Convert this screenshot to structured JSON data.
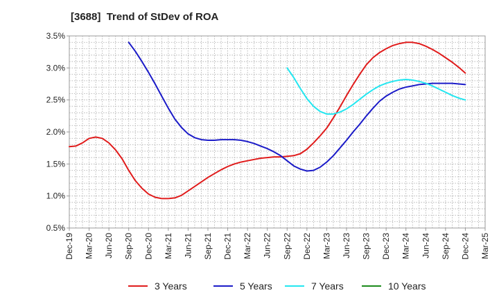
{
  "chart_data": {
    "type": "line",
    "title": "[3688]  Trend of StDev of ROA",
    "xlabel": "",
    "ylabel": "",
    "x_tick_labels": [
      "Dec-19",
      "Mar-20",
      "Jun-20",
      "Sep-20",
      "Dec-20",
      "Mar-21",
      "Jun-21",
      "Sep-21",
      "Dec-21",
      "Mar-22",
      "Jun-22",
      "Sep-22",
      "Dec-22",
      "Mar-23",
      "Jun-23",
      "Sep-23",
      "Dec-23",
      "Mar-24",
      "Jun-24",
      "Sep-24",
      "Dec-24",
      "Mar-25"
    ],
    "y_tick_labels": [
      "3.5%",
      "3.0%",
      "2.5%",
      "2.0%",
      "1.5%",
      "1.0%",
      "0.5%"
    ],
    "ylim": [
      0.5,
      3.5
    ],
    "y_unit": "%",
    "grid": true,
    "legend_position": "bottom",
    "series": [
      {
        "name": "3 Years",
        "color": "#e01b1b",
        "points": [
          [
            "Dec-19",
            1.77
          ],
          [
            "Jan-20",
            1.78
          ],
          [
            "Feb-20",
            1.83
          ],
          [
            "Mar-20",
            1.9
          ],
          [
            "Apr-20",
            1.92
          ],
          [
            "May-20",
            1.9
          ],
          [
            "Jun-20",
            1.83
          ],
          [
            "Jul-20",
            1.72
          ],
          [
            "Aug-20",
            1.58
          ],
          [
            "Sep-20",
            1.4
          ],
          [
            "Oct-20",
            1.24
          ],
          [
            "Nov-20",
            1.12
          ],
          [
            "Dec-20",
            1.03
          ],
          [
            "Jan-21",
            0.98
          ],
          [
            "Feb-21",
            0.96
          ],
          [
            "Mar-21",
            0.96
          ],
          [
            "Apr-21",
            0.97
          ],
          [
            "May-21",
            1.01
          ],
          [
            "Jun-21",
            1.08
          ],
          [
            "Jul-21",
            1.15
          ],
          [
            "Aug-21",
            1.22
          ],
          [
            "Sep-21",
            1.29
          ],
          [
            "Oct-21",
            1.35
          ],
          [
            "Nov-21",
            1.41
          ],
          [
            "Dec-21",
            1.46
          ],
          [
            "Jan-22",
            1.5
          ],
          [
            "Feb-22",
            1.53
          ],
          [
            "Mar-22",
            1.55
          ],
          [
            "Apr-22",
            1.57
          ],
          [
            "May-22",
            1.59
          ],
          [
            "Jun-22",
            1.6
          ],
          [
            "Jul-22",
            1.61
          ],
          [
            "Aug-22",
            1.61
          ],
          [
            "Sep-22",
            1.62
          ],
          [
            "Oct-22",
            1.63
          ],
          [
            "Nov-22",
            1.66
          ],
          [
            "Dec-22",
            1.73
          ],
          [
            "Jan-23",
            1.83
          ],
          [
            "Feb-23",
            1.94
          ],
          [
            "Mar-23",
            2.06
          ],
          [
            "Apr-23",
            2.22
          ],
          [
            "May-23",
            2.39
          ],
          [
            "Jun-23",
            2.57
          ],
          [
            "Jul-23",
            2.74
          ],
          [
            "Aug-23",
            2.9
          ],
          [
            "Sep-23",
            3.05
          ],
          [
            "Oct-23",
            3.16
          ],
          [
            "Nov-23",
            3.24
          ],
          [
            "Dec-23",
            3.3
          ],
          [
            "Jan-24",
            3.35
          ],
          [
            "Feb-24",
            3.38
          ],
          [
            "Mar-24",
            3.4
          ],
          [
            "Apr-24",
            3.4
          ],
          [
            "May-24",
            3.38
          ],
          [
            "Jun-24",
            3.34
          ],
          [
            "Jul-24",
            3.29
          ],
          [
            "Aug-24",
            3.23
          ],
          [
            "Sep-24",
            3.16
          ],
          [
            "Oct-24",
            3.09
          ],
          [
            "Nov-24",
            3.01
          ],
          [
            "Dec-24",
            2.92
          ]
        ]
      },
      {
        "name": "5 Years",
        "color": "#1a1ac8",
        "points": [
          [
            "Sep-20",
            3.4
          ],
          [
            "Oct-20",
            3.26
          ],
          [
            "Nov-20",
            3.1
          ],
          [
            "Dec-20",
            2.93
          ],
          [
            "Jan-21",
            2.75
          ],
          [
            "Feb-21",
            2.56
          ],
          [
            "Mar-21",
            2.37
          ],
          [
            "Apr-21",
            2.2
          ],
          [
            "May-21",
            2.07
          ],
          [
            "Jun-21",
            1.97
          ],
          [
            "Jul-21",
            1.91
          ],
          [
            "Aug-21",
            1.88
          ],
          [
            "Sep-21",
            1.87
          ],
          [
            "Oct-21",
            1.87
          ],
          [
            "Nov-21",
            1.88
          ],
          [
            "Dec-21",
            1.88
          ],
          [
            "Jan-22",
            1.88
          ],
          [
            "Feb-22",
            1.87
          ],
          [
            "Mar-22",
            1.85
          ],
          [
            "Apr-22",
            1.82
          ],
          [
            "May-22",
            1.78
          ],
          [
            "Jun-22",
            1.74
          ],
          [
            "Jul-22",
            1.69
          ],
          [
            "Aug-22",
            1.63
          ],
          [
            "Sep-22",
            1.55
          ],
          [
            "Oct-22",
            1.47
          ],
          [
            "Nov-22",
            1.42
          ],
          [
            "Dec-22",
            1.39
          ],
          [
            "Jan-23",
            1.4
          ],
          [
            "Feb-23",
            1.45
          ],
          [
            "Mar-23",
            1.53
          ],
          [
            "Apr-23",
            1.63
          ],
          [
            "May-23",
            1.75
          ],
          [
            "Jun-23",
            1.87
          ],
          [
            "Jul-23",
            2.0
          ],
          [
            "Aug-23",
            2.12
          ],
          [
            "Sep-23",
            2.25
          ],
          [
            "Oct-23",
            2.37
          ],
          [
            "Nov-23",
            2.48
          ],
          [
            "Dec-23",
            2.56
          ],
          [
            "Jan-24",
            2.62
          ],
          [
            "Feb-24",
            2.67
          ],
          [
            "Mar-24",
            2.7
          ],
          [
            "Apr-24",
            2.72
          ],
          [
            "May-24",
            2.74
          ],
          [
            "Jun-24",
            2.75
          ],
          [
            "Jul-24",
            2.76
          ],
          [
            "Aug-24",
            2.76
          ],
          [
            "Sep-24",
            2.76
          ],
          [
            "Oct-24",
            2.76
          ],
          [
            "Nov-24",
            2.75
          ],
          [
            "Dec-24",
            2.74
          ]
        ]
      },
      {
        "name": "7 Years",
        "color": "#22e6f0",
        "points": [
          [
            "Sep-22",
            3.0
          ],
          [
            "Oct-22",
            2.85
          ],
          [
            "Nov-22",
            2.68
          ],
          [
            "Dec-22",
            2.52
          ],
          [
            "Jan-23",
            2.4
          ],
          [
            "Feb-23",
            2.32
          ],
          [
            "Mar-23",
            2.28
          ],
          [
            "Apr-23",
            2.28
          ],
          [
            "May-23",
            2.31
          ],
          [
            "Jun-23",
            2.36
          ],
          [
            "Jul-23",
            2.43
          ],
          [
            "Aug-23",
            2.51
          ],
          [
            "Sep-23",
            2.59
          ],
          [
            "Oct-23",
            2.66
          ],
          [
            "Nov-23",
            2.72
          ],
          [
            "Dec-23",
            2.76
          ],
          [
            "Jan-24",
            2.79
          ],
          [
            "Feb-24",
            2.81
          ],
          [
            "Mar-24",
            2.82
          ],
          [
            "Apr-24",
            2.81
          ],
          [
            "May-24",
            2.79
          ],
          [
            "Jun-24",
            2.76
          ],
          [
            "Jul-24",
            2.72
          ],
          [
            "Aug-24",
            2.67
          ],
          [
            "Sep-24",
            2.62
          ],
          [
            "Oct-24",
            2.57
          ],
          [
            "Nov-24",
            2.53
          ],
          [
            "Dec-24",
            2.5
          ]
        ]
      },
      {
        "name": "10 Years",
        "color": "#1a8a1a",
        "points": []
      }
    ]
  }
}
